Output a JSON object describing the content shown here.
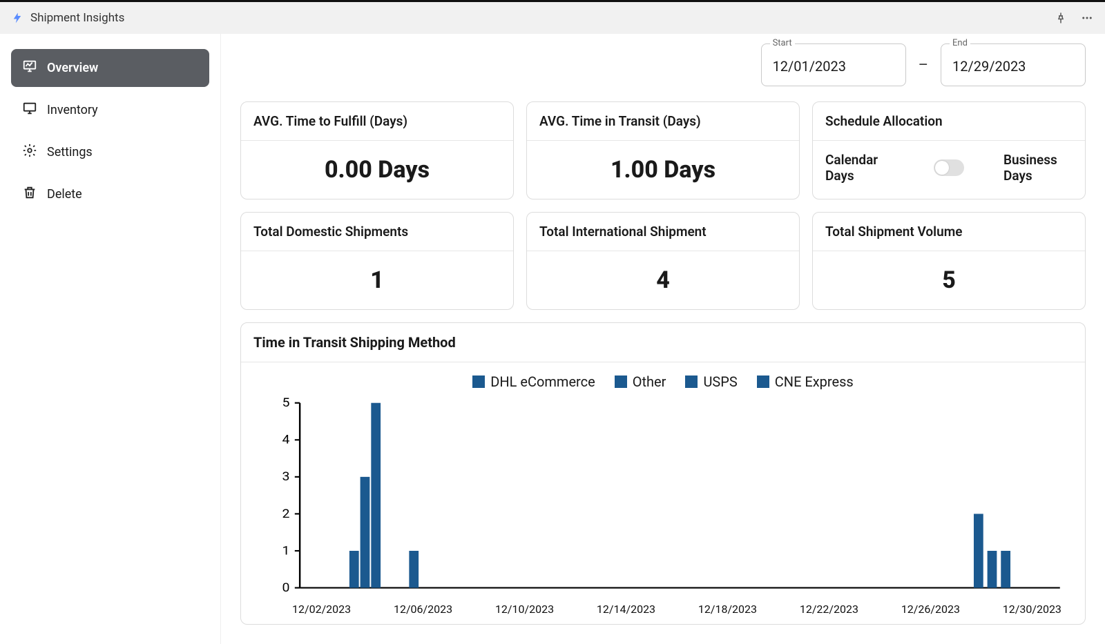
{
  "app": {
    "title": "Shipment Insights",
    "logo_color": "#4a7cff"
  },
  "header_icons": {
    "pin": "pin-icon",
    "more": "more-icon"
  },
  "sidebar": {
    "items": [
      {
        "key": "overview",
        "label": "Overview",
        "icon": "chart-monitor-icon",
        "active": true
      },
      {
        "key": "inventory",
        "label": "Inventory",
        "icon": "monitor-icon",
        "active": false
      },
      {
        "key": "settings",
        "label": "Settings",
        "icon": "gear-icon",
        "active": false
      },
      {
        "key": "delete",
        "label": "Delete",
        "icon": "trash-icon",
        "active": false
      }
    ]
  },
  "date_range": {
    "start_label": "Start",
    "start_value": "12/01/2023",
    "end_label": "End",
    "end_value": "12/29/2023"
  },
  "metrics_top": {
    "fulfill": {
      "title": "AVG. Time to Fulfill (Days)",
      "value": "0.00 Days"
    },
    "transit": {
      "title": "AVG. Time in Transit (Days)",
      "value": "1.00 Days"
    },
    "schedule": {
      "title": "Schedule Allocation",
      "left_label": "Calendar Days",
      "right_label": "Business Days",
      "toggled_on": false
    }
  },
  "metrics_bottom": {
    "domestic": {
      "title": "Total Domestic Shipments",
      "value": "1"
    },
    "international": {
      "title": "Total International Shipment",
      "value": "4"
    },
    "volume": {
      "title": "Total Shipment Volume",
      "value": "5"
    }
  },
  "chart": {
    "title": "Time in Transit Shipping Method",
    "type": "bar",
    "legend": [
      {
        "label": "DHL eCommerce",
        "color": "#1b598f"
      },
      {
        "label": "Other",
        "color": "#1b598f"
      },
      {
        "label": "USPS",
        "color": "#1b598f"
      },
      {
        "label": "CNE Express",
        "color": "#1b598f"
      }
    ],
    "ylim": [
      0,
      5
    ],
    "ytick_step": 1,
    "x_labels": [
      "12/02/2023",
      "12/06/2023",
      "12/10/2023",
      "12/14/2023",
      "12/18/2023",
      "12/22/2023",
      "12/26/2023",
      "12/30/2023"
    ],
    "x_domain_days": 28,
    "bars": [
      {
        "day_offset": 2.0,
        "value": 1,
        "color": "#1b598f"
      },
      {
        "day_offset": 2.4,
        "value": 3,
        "color": "#1b598f"
      },
      {
        "day_offset": 2.8,
        "value": 5,
        "color": "#1b598f"
      },
      {
        "day_offset": 4.2,
        "value": 1,
        "color": "#1b598f"
      },
      {
        "day_offset": 25.0,
        "value": 2,
        "color": "#1b598f"
      },
      {
        "day_offset": 25.5,
        "value": 1,
        "color": "#1b598f"
      },
      {
        "day_offset": 26.0,
        "value": 1,
        "color": "#1b598f"
      }
    ],
    "bar_width_days": 0.35,
    "axis_color": "#000000",
    "background_color": "#ffffff",
    "label_fontsize": 16
  }
}
